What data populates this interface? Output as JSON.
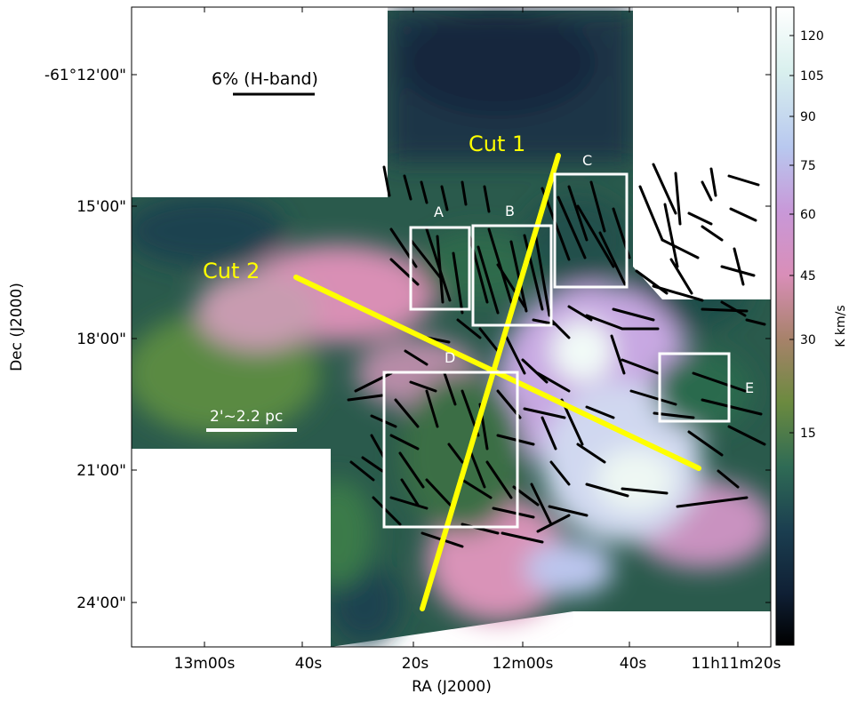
{
  "axes": {
    "xlabel": "RA (J2000)",
    "ylabel": "Dec (J2000)",
    "xticks": [
      "13m00s",
      "40s",
      "20s",
      "12m00s",
      "40s",
      "11h11m20s"
    ],
    "yticks": [
      "-61°12'00\"",
      "15'00\"",
      "18'00\"",
      "21'00\"",
      "24'00\""
    ]
  },
  "colorbar": {
    "label": "K km/s",
    "ticks": [
      "120",
      "105",
      "90",
      "75",
      "60",
      "45",
      "30",
      "15"
    ],
    "colors": [
      "#ffffff",
      "#d7efee",
      "#b5c9ef",
      "#c795d8",
      "#d88fbb",
      "#a9866a",
      "#6a8a3e",
      "#2f6a55",
      "#1b3d4f",
      "#0f1e33",
      "#000000"
    ]
  },
  "annotations": {
    "polarization_scale": "6% (H-band)",
    "physical_scale": "2'~2.2 pc",
    "cut1": "Cut 1",
    "cut2": "Cut 2",
    "boxes": [
      "A",
      "B",
      "C",
      "D",
      "E"
    ]
  },
  "colors": {
    "cut_line": "#ffff00",
    "box_outline": "#ffffff",
    "vector": "#000000"
  }
}
